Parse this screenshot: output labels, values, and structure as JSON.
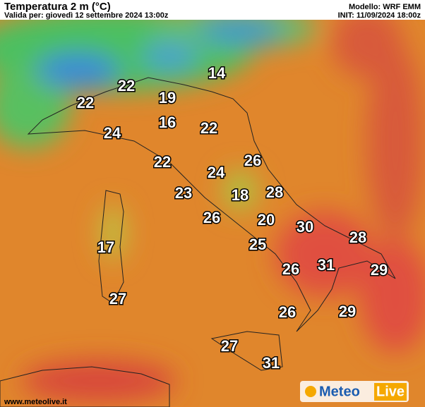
{
  "header": {
    "title": "Temperatura 2 m (°C)",
    "valid": "Valida per: giovedì 12 settembre 2024 13:00z",
    "model": "Modello: WRF EMM",
    "init": "INIT: 11/09/2024 18:00z"
  },
  "labels": [
    14,
    22,
    19,
    22,
    16,
    22,
    24,
    22,
    26,
    24,
    23,
    18,
    28,
    26,
    20,
    30,
    28,
    17,
    25,
    31,
    26,
    29,
    27,
    26,
    29,
    27,
    31
  ],
  "footer": {
    "url": "www.meteolive.it",
    "logo_a": "Meteo",
    "logo_b": "Live"
  }
}
